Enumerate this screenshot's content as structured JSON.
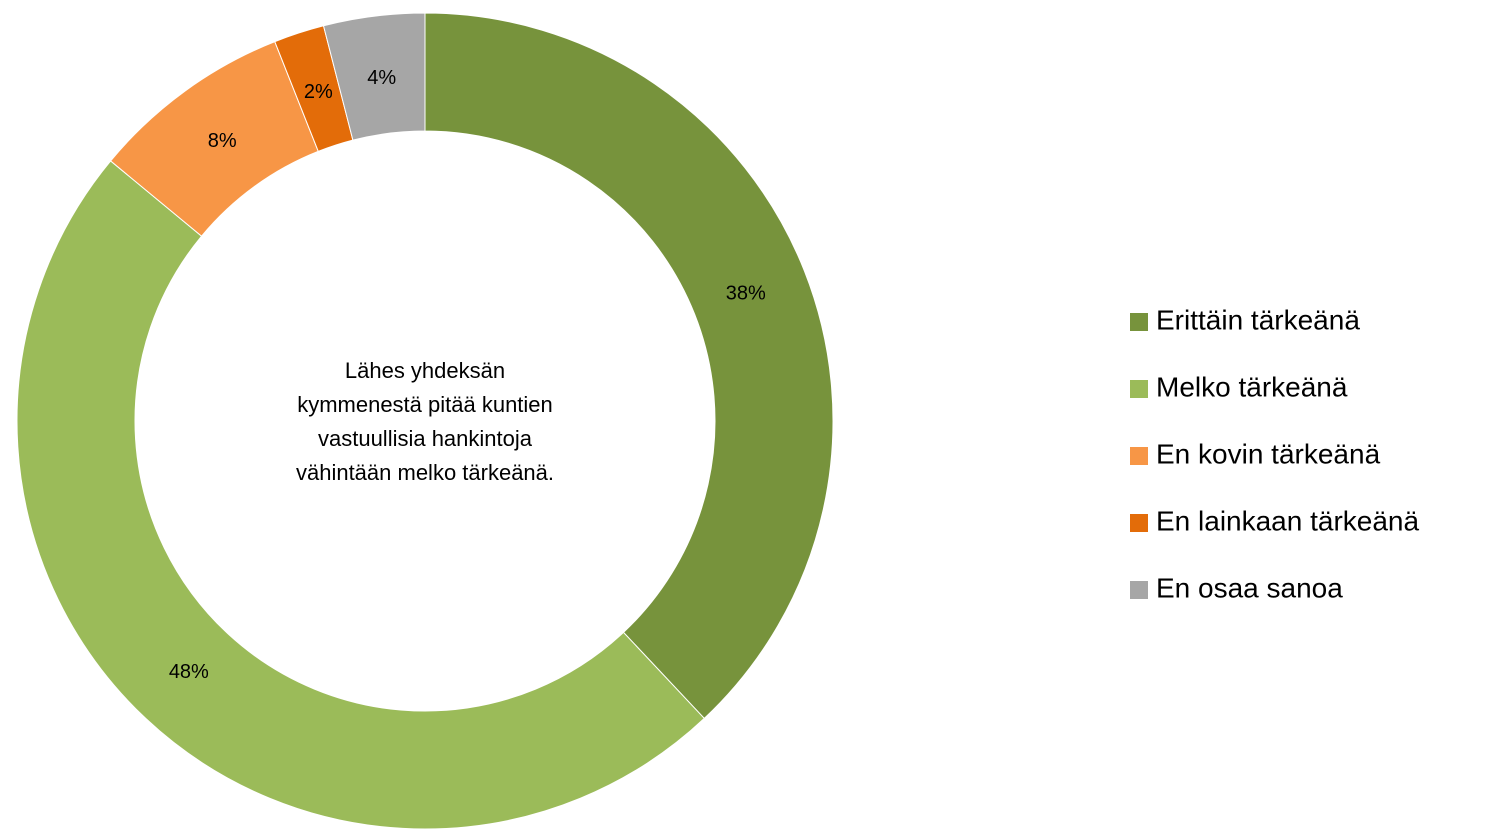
{
  "chart_data": {
    "type": "donut",
    "categories": [
      "Erittäin tärkeänä",
      "Melko tärkeänä",
      "En kovin tärkeänä",
      "En lainkaan tärkeänä",
      "En osaa sanoa"
    ],
    "values": [
      38,
      48,
      8,
      2,
      4
    ],
    "value_labels": [
      "38%",
      "48%",
      "8%",
      "2%",
      "4%"
    ],
    "colors": [
      "#77933c",
      "#9bbb59",
      "#f79646",
      "#e36c09",
      "#a6a6a6"
    ],
    "annotation": [
      "Lähes yhdeksän",
      "kymmenestä pitää kuntien",
      "vastuullisia hankintoja",
      "vähintään melko tärkeänä."
    ],
    "legend": "right"
  }
}
